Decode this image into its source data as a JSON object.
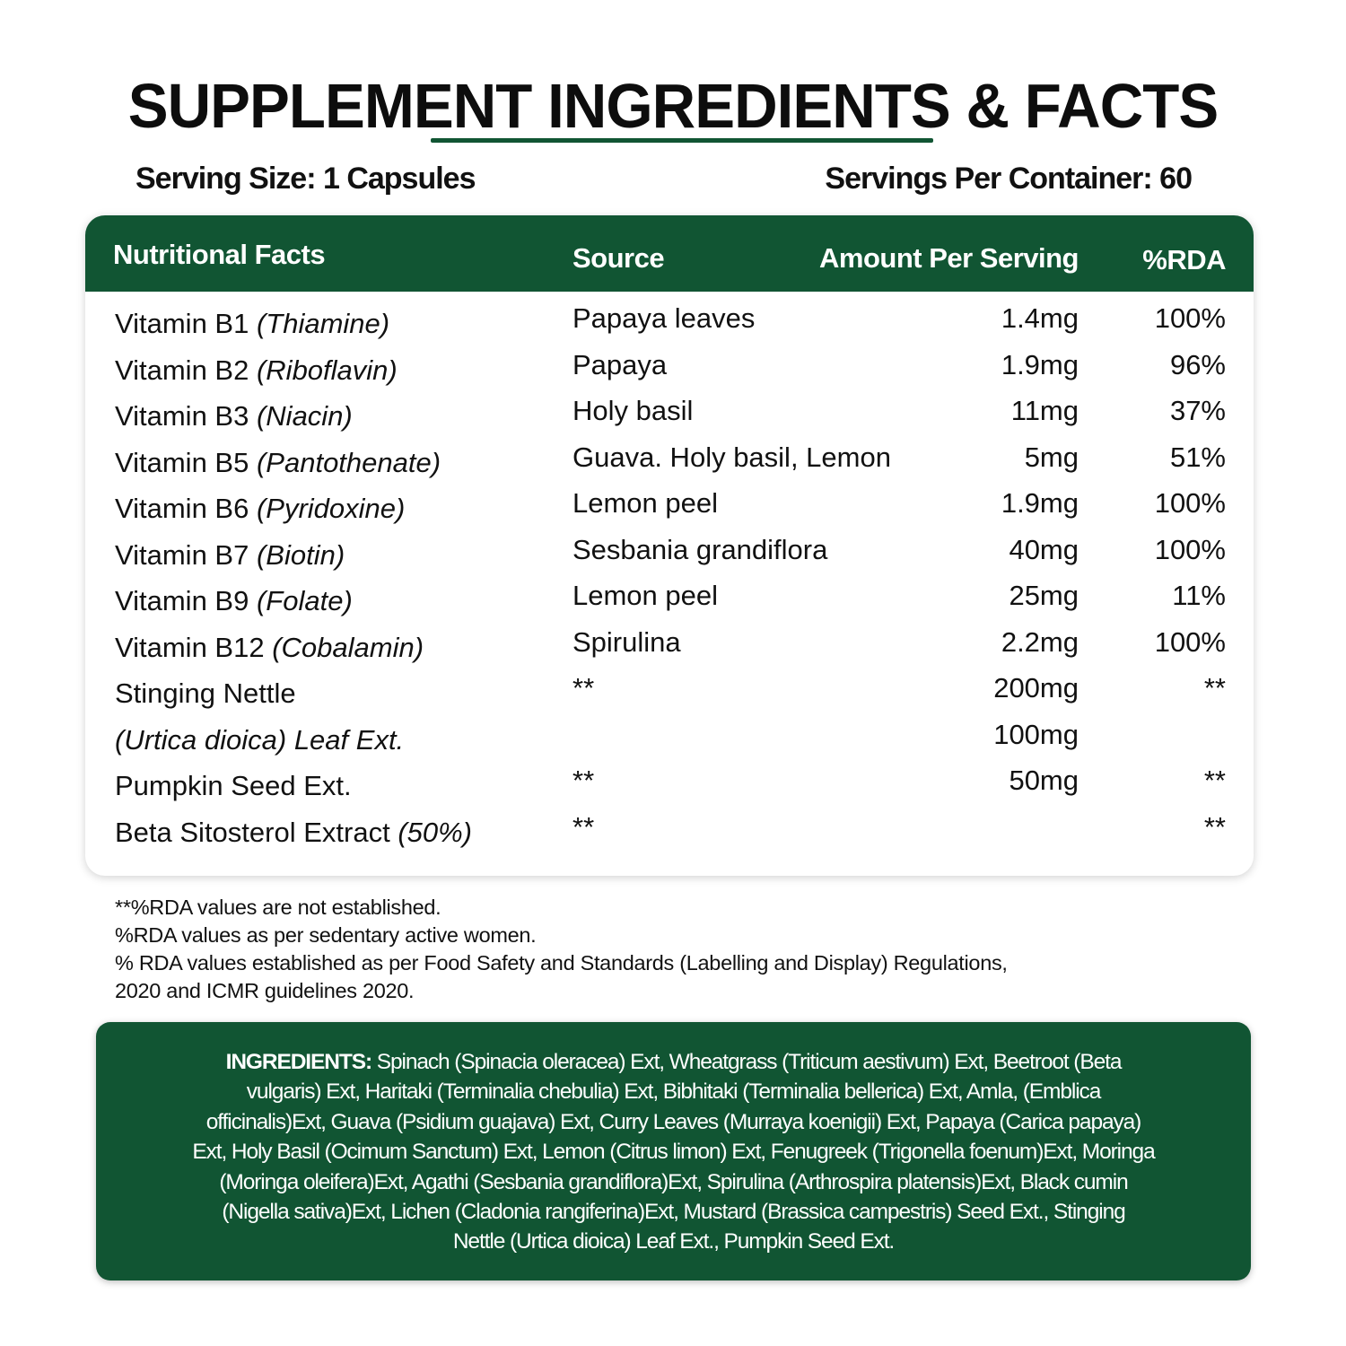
{
  "title": "SUPPLEMENT INGREDIENTS & FACTS",
  "serving_size": "Serving Size: 1 Capsules",
  "servings_per_container": "Servings Per Container: 60",
  "colors": {
    "brand_green": "#115533"
  },
  "table": {
    "headers": [
      "Nutritional Facts",
      "Source",
      "Amount Per Serving",
      "%RDA"
    ],
    "rows": [
      {
        "name": "Vitamin B1",
        "sub": "(Thiamine)",
        "source": "Papaya leaves",
        "amount": "1.4mg",
        "rda": "100%"
      },
      {
        "name": "Vitamin B2",
        "sub": "(Riboflavin)",
        "source": "Papaya",
        "amount": "1.9mg",
        "rda": "96%"
      },
      {
        "name": "Vitamin B3",
        "sub": "(Niacin)",
        "source": "Holy basil",
        "amount": "11mg",
        "rda": "37%"
      },
      {
        "name": "Vitamin B5",
        "sub": "(Pantothenate)",
        "source": "Guava. Holy basil, Lemon",
        "amount": "5mg",
        "rda": "51%"
      },
      {
        "name": "Vitamin B6",
        "sub": "(Pyridoxine)",
        "source": "Lemon peel",
        "amount": "1.9mg",
        "rda": "100%"
      },
      {
        "name": "Vitamin B7",
        "sub": "(Biotin)",
        "source": "Sesbania grandiflora",
        "amount": "40mg",
        "rda": "100%"
      },
      {
        "name": "Vitamin B9",
        "sub": "(Folate)",
        "source": "Lemon peel",
        "amount": "25mg",
        "rda": "11%"
      },
      {
        "name": "Vitamin B12",
        "sub": "(Cobalamin)",
        "source": "Spirulina",
        "amount": "2.2mg",
        "rda": "100%"
      },
      {
        "name": "Stinging Nettle",
        "sub": "",
        "source": "**",
        "amount": "200mg",
        "rda": "**"
      },
      {
        "name": "",
        "sub": "(Urtica dioica) Leaf Ext.",
        "source": "",
        "amount": "100mg",
        "rda": ""
      },
      {
        "name": "Pumpkin Seed Ext.",
        "sub": "",
        "source": "**",
        "amount": "50mg",
        "rda": "**"
      },
      {
        "name": "Beta Sitosterol Extract",
        "sub": "(50%)",
        "source": "**",
        "amount": "",
        "rda": "**"
      }
    ]
  },
  "notes": [
    "**%RDA values are not established.",
    "%RDA values as per sedentary active women.",
    "% RDA values established as per Food Safety and Standards (Labelling and Display) Regulations,",
    "2020 and ICMR guidelines 2020."
  ],
  "ingredients": {
    "label": "INGREDIENTS:",
    "lines": [
      " Spinach (Spinacia oleracea) Ext, Wheatgrass (Triticum aestivum) Ext, Beetroot (Beta",
      "vulgaris) Ext, Haritaki (Terminalia chebulia) Ext, Bibhitaki (Terminalia bellerica) Ext, Amla, (Emblica",
      "officinalis)Ext, Guava (Psidium guajava) Ext, Curry Leaves (Murraya koenigii) Ext, Papaya (Carica papaya)",
      "Ext, Holy Basil (Ocimum Sanctum) Ext, Lemon (Citrus limon) Ext, Fenugreek (Trigonella foenum)Ext, Moringa",
      "(Moringa oleifera)Ext, Agathi (Sesbania grandiflora)Ext, Spirulina (Arthrospira platensis)Ext, Black cumin",
      "(Nigella sativa)Ext, Lichen (Cladonia rangiferina)Ext, Mustard (Brassica campestris) Seed Ext., Stinging",
      "Nettle (Urtica dioica) Leaf Ext., Pumpkin Seed Ext."
    ]
  }
}
